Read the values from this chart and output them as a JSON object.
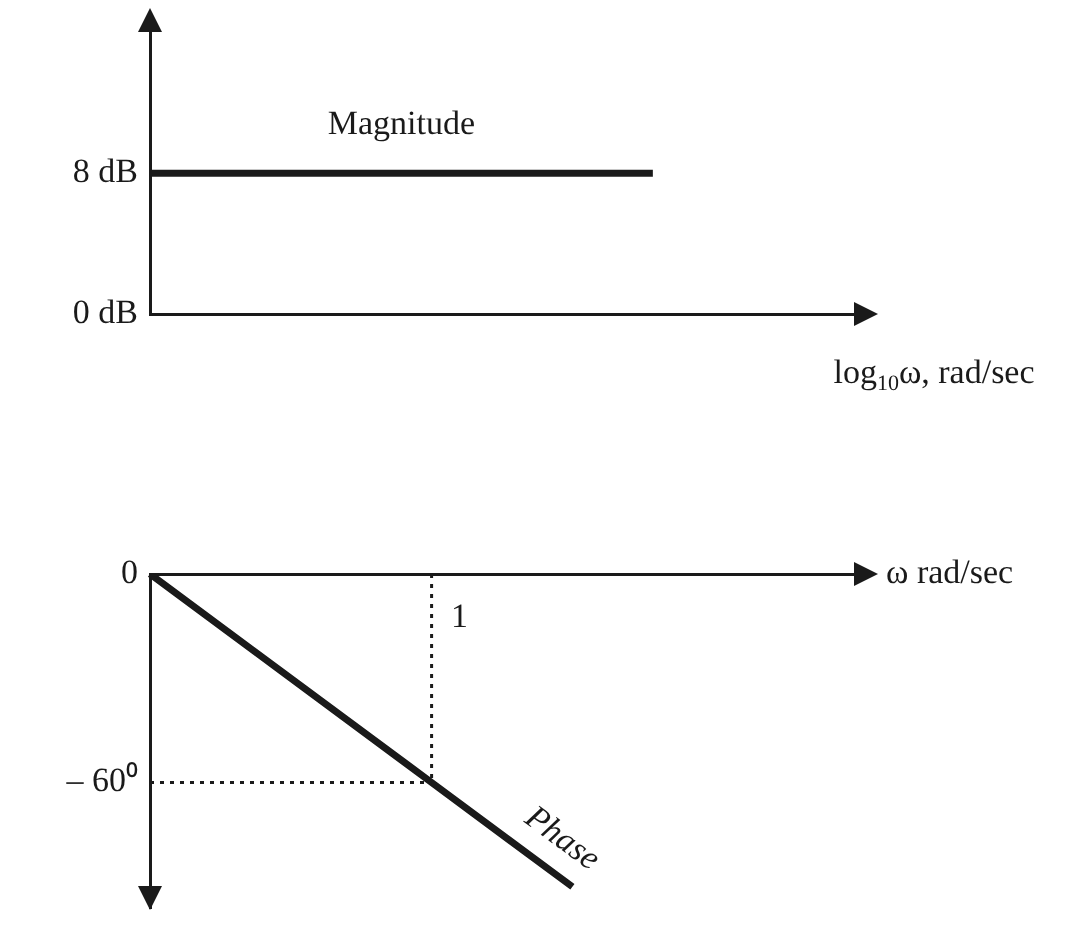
{
  "chart_data": [
    {
      "type": "line",
      "xlabel": "log$_{10}$ω, rad/sec",
      "categories": [
        null,
        null,
        null,
        null,
        null,
        null,
        null,
        null
      ],
      "series": [
        {
          "name": "Magnitude",
          "color": "#1a1a1a",
          "values": [
            8,
            8,
            8,
            8,
            8,
            8,
            null,
            null
          ]
        }
      ],
      "ylim": [
        0,
        16
      ],
      "yticks": [
        {
          "value": 0,
          "label": "0 dB"
        },
        {
          "value": 8,
          "label": "8 dB"
        }
      ],
      "tick_labels": "y",
      "grid": false,
      "legend": false,
      "marker": "none",
      "line_style": "solid"
    },
    {
      "type": "line",
      "xlabel": "ω rad/sec",
      "categories": [
        null,
        null,
        "1",
        null,
        null,
        null
      ],
      "series": [
        {
          "name": "Phase",
          "color": "#1a1a1a",
          "values": [
            0,
            -30,
            -60,
            -90,
            null,
            null
          ]
        }
      ],
      "ylim": [
        -96,
        0
      ],
      "yticks": [
        0,
        {
          "value": -60,
          "label": "– 60⁰"
        }
      ],
      "ref_lines": [
        {
          "axis": "x",
          "value": "1",
          "line_style": "dotted"
        },
        {
          "axis": "y",
          "value": -60,
          "line_style": "dotted"
        }
      ],
      "grid": false,
      "legend": false,
      "marker": "none",
      "line_style": "solid"
    }
  ]
}
